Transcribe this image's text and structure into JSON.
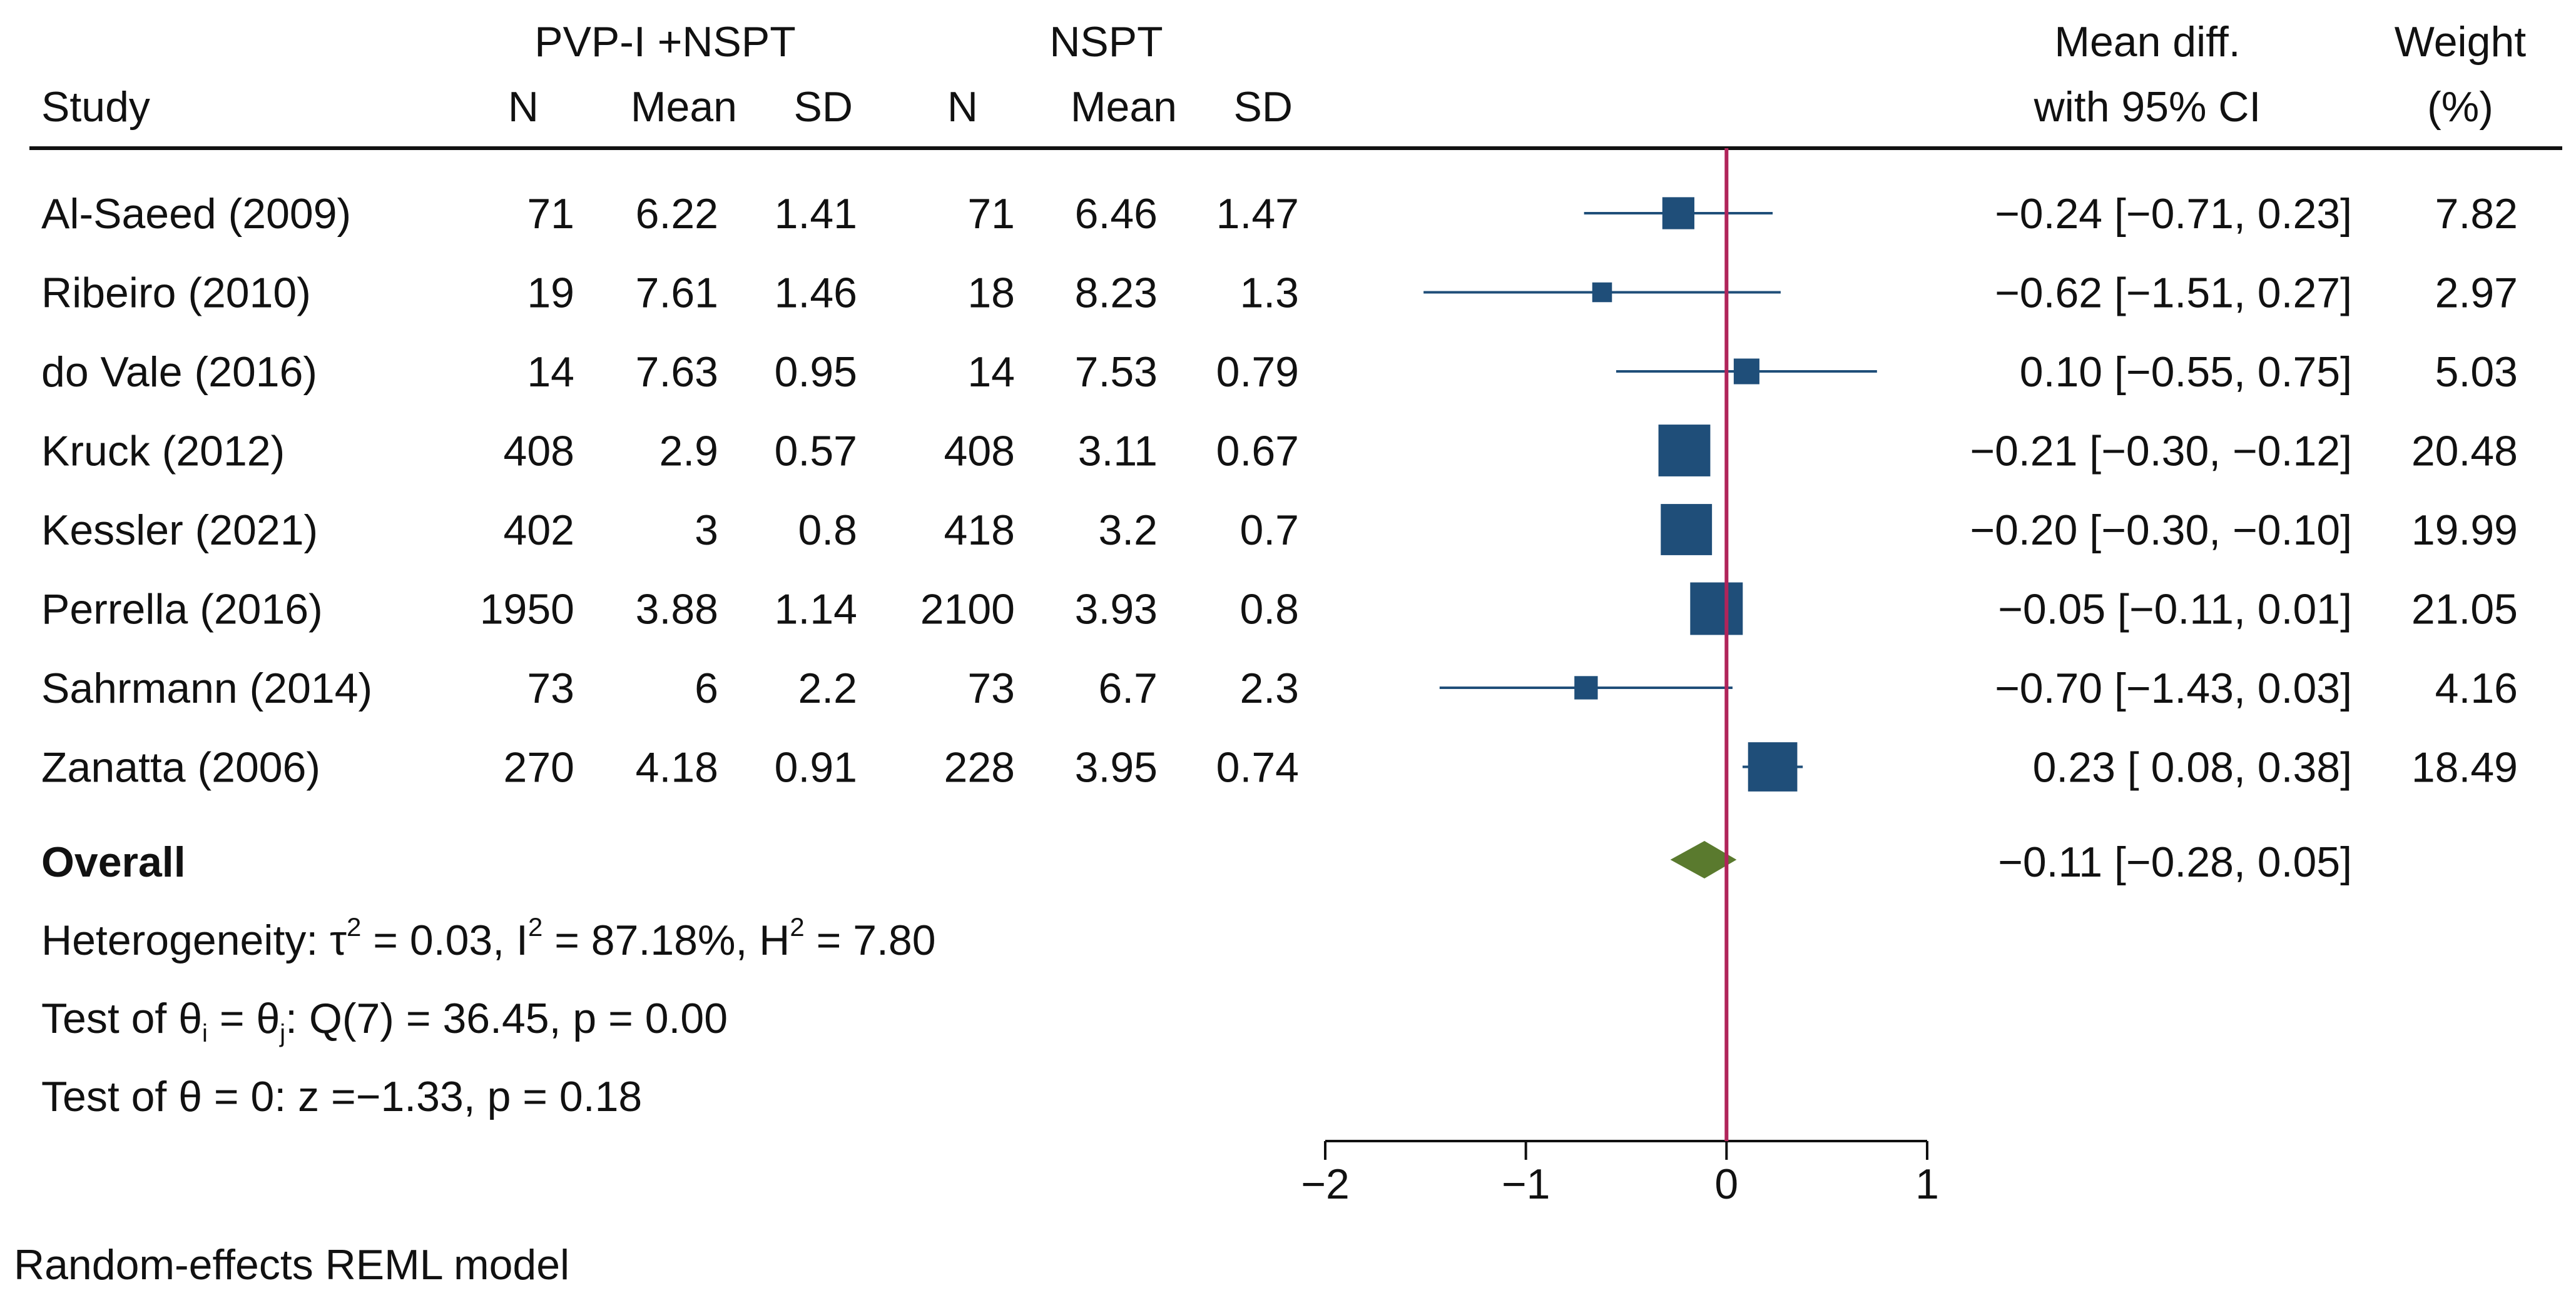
{
  "chart_data": {
    "type": "forest",
    "title": "",
    "headers": {
      "group1": "PVP-I +NSPT",
      "group2": "NSPT",
      "study": "Study",
      "n": "N",
      "mean": "Mean",
      "sd": "SD",
      "effect_line1": "Mean diff.",
      "effect_line2": "with 95% CI",
      "weight_line1": "Weight",
      "weight_line2": "(%)"
    },
    "studies": [
      {
        "study": "Al-Saeed (2009)",
        "n1": "71",
        "mean1": "6.22",
        "sd1": "1.41",
        "n2": "71",
        "mean2": "6.46",
        "sd2": "1.47",
        "est": -0.24,
        "lo": -0.71,
        "hi": 0.23,
        "ci_text": "−0.24 [−0.71,  0.23]",
        "weight": 7.82,
        "weight_text": "7.82"
      },
      {
        "study": "Ribeiro (2010)",
        "n1": "19",
        "mean1": "7.61",
        "sd1": "1.46",
        "n2": "18",
        "mean2": "8.23",
        "sd2": "1.3",
        "est": -0.62,
        "lo": -1.51,
        "hi": 0.27,
        "ci_text": "−0.62 [−1.51,  0.27]",
        "weight": 2.97,
        "weight_text": "2.97"
      },
      {
        "study": "do Vale (2016)",
        "n1": "14",
        "mean1": "7.63",
        "sd1": "0.95",
        "n2": "14",
        "mean2": "7.53",
        "sd2": "0.79",
        "est": 0.1,
        "lo": -0.55,
        "hi": 0.75,
        "ci_text": "0.10 [−0.55,  0.75]",
        "weight": 5.03,
        "weight_text": "5.03"
      },
      {
        "study": "Kruck (2012)",
        "n1": "408",
        "mean1": "2.9",
        "sd1": "0.57",
        "n2": "408",
        "mean2": "3.11",
        "sd2": "0.67",
        "est": -0.21,
        "lo": -0.3,
        "hi": -0.12,
        "ci_text": "−0.21 [−0.30, −0.12]",
        "weight": 20.48,
        "weight_text": "20.48"
      },
      {
        "study": "Kessler (2021)",
        "n1": "402",
        "mean1": "3",
        "sd1": "0.8",
        "n2": "418",
        "mean2": "3.2",
        "sd2": "0.7",
        "est": -0.2,
        "lo": -0.3,
        "hi": -0.1,
        "ci_text": "−0.20 [−0.30, −0.10]",
        "weight": 19.99,
        "weight_text": "19.99"
      },
      {
        "study": "Perrella (2016)",
        "n1": "1950",
        "mean1": "3.88",
        "sd1": "1.14",
        "n2": "2100",
        "mean2": "3.93",
        "sd2": "0.8",
        "est": -0.05,
        "lo": -0.11,
        "hi": 0.01,
        "ci_text": "−0.05 [−0.11,  0.01]",
        "weight": 21.05,
        "weight_text": "21.05"
      },
      {
        "study": "Sahrmann (2014)",
        "n1": "73",
        "mean1": "6",
        "sd1": "2.2",
        "n2": "73",
        "mean2": "6.7",
        "sd2": "2.3",
        "est": -0.7,
        "lo": -1.43,
        "hi": 0.03,
        "ci_text": "−0.70 [−1.43,  0.03]",
        "weight": 4.16,
        "weight_text": "4.16"
      },
      {
        "study": "Zanatta (2006)",
        "n1": "270",
        "mean1": "4.18",
        "sd1": "0.91",
        "n2": "228",
        "mean2": "3.95",
        "sd2": "0.74",
        "est": 0.23,
        "lo": 0.08,
        "hi": 0.38,
        "ci_text": "0.23 [ 0.08,  0.38]",
        "weight": 18.49,
        "weight_text": "18.49"
      }
    ],
    "overall": {
      "label": "Overall",
      "est": -0.11,
      "lo": -0.28,
      "hi": 0.05,
      "ci_text": "−0.11 [−0.28,  0.05]"
    },
    "heterogeneity": {
      "prefix": "Heterogeneity: ",
      "tau_symbol": "τ",
      "tau_sq": " = 0.03, ",
      "i_symbol": "I",
      "i_sq": " = 87.18%, ",
      "h_symbol": "H",
      "h_sq": " = 7.80",
      "sup_2": "2"
    },
    "test_homogeneity": {
      "prefix": "Test of ",
      "theta": "θ",
      "sub_i": "i",
      "equals": " = ",
      "sub_j": "j",
      "rest": ": Q(7) = 36.45, p = 0.00"
    },
    "test_overall": "Test of θ = 0: z =−1.33, p = 0.18",
    "footnote": "Random-effects REML model",
    "xaxis": {
      "min": -2,
      "max": 1,
      "ticks": [
        -2,
        -1,
        0,
        1
      ],
      "tick_labels": [
        "−2",
        "−1",
        "0",
        "1"
      ]
    },
    "reference_line": 0,
    "colors": {
      "marker": "#1f4e79",
      "ci_line": "#1f4e79",
      "diamond": "#5a7a2e",
      "reference": "#b0245a",
      "text": "#111111",
      "rule": "#111111"
    }
  }
}
